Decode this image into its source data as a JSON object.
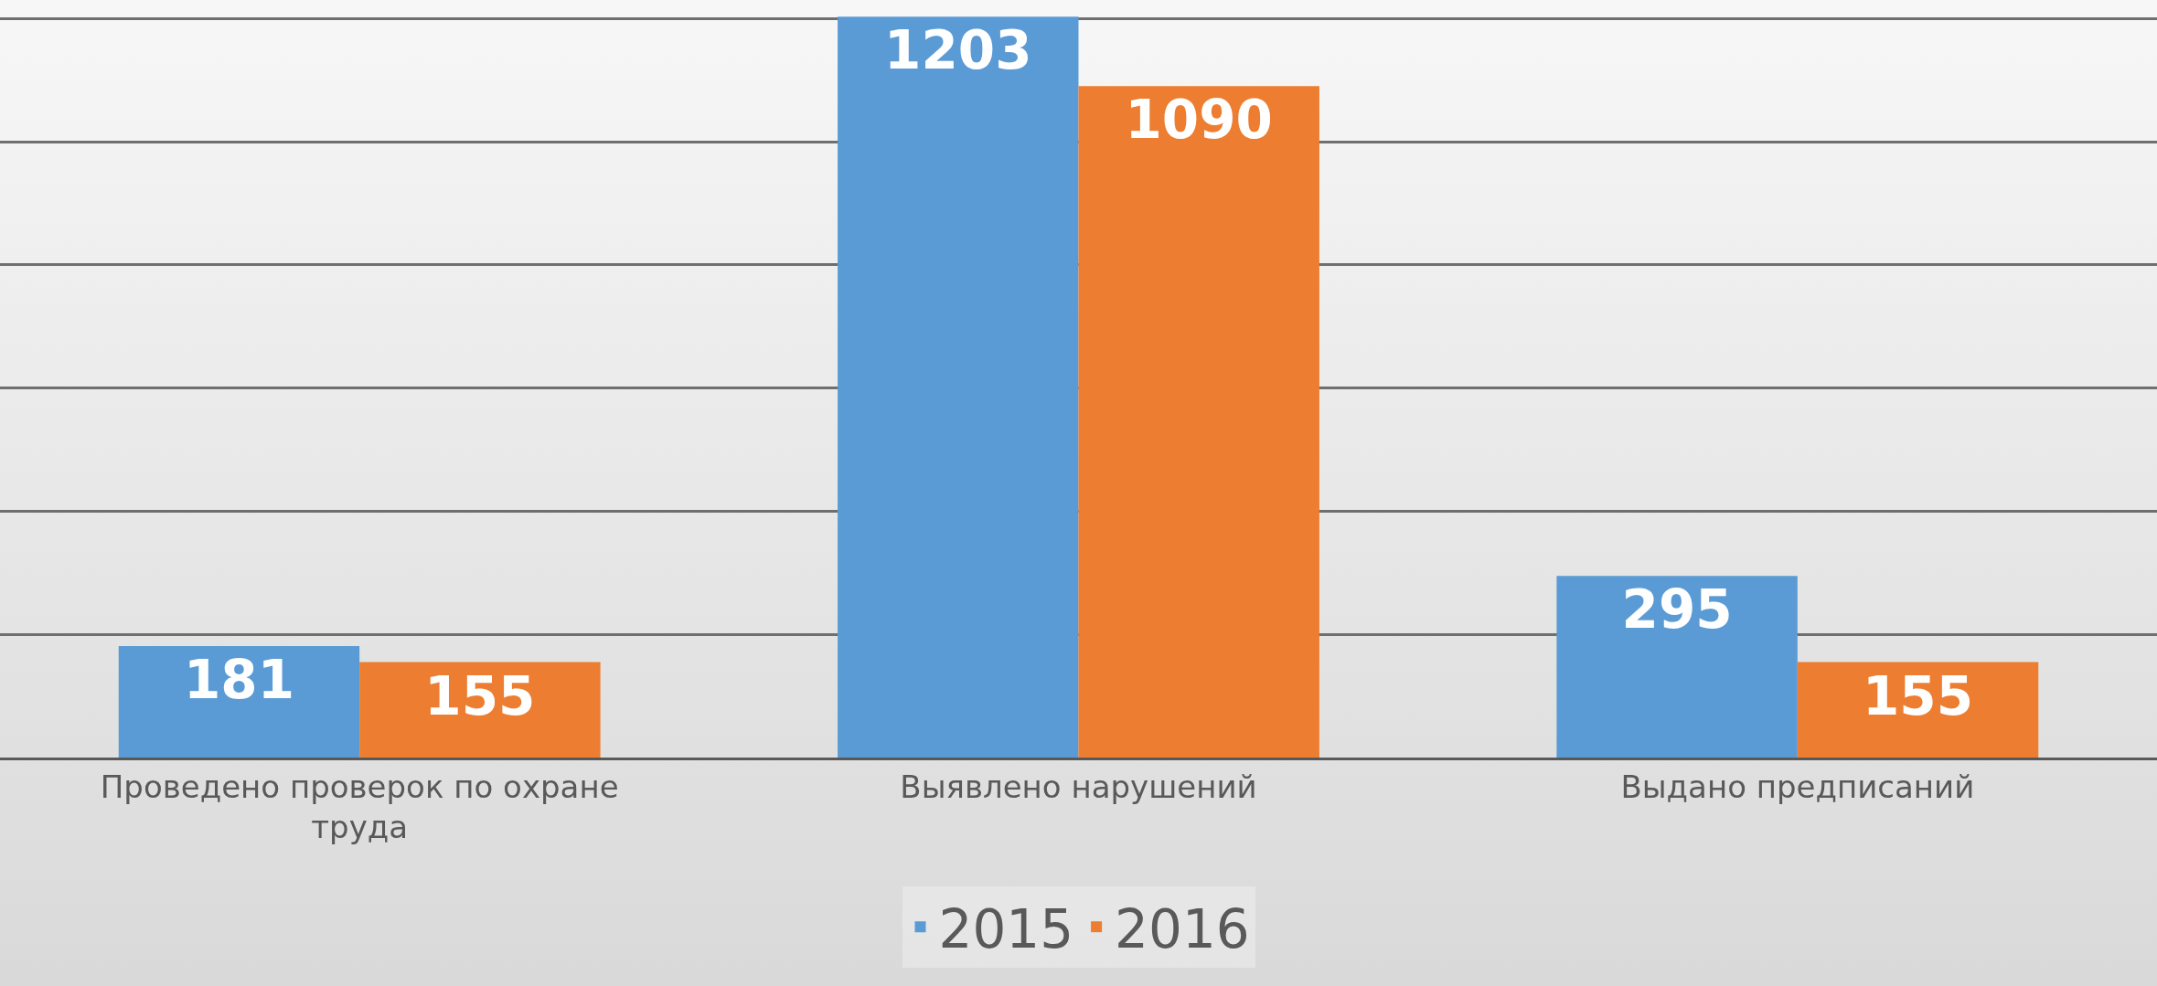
{
  "chart_data": {
    "type": "bar",
    "categories": [
      "Проведено проверок по охране труда",
      "Выявлено нарушений",
      "Выдано предписаний"
    ],
    "series": [
      {
        "name": "2015",
        "color": "#5b9bd5",
        "values": [
          181,
          1203,
          295
        ]
      },
      {
        "name": "2016",
        "color": "#ed7d31",
        "values": [
          155,
          1090,
          155
        ]
      }
    ],
    "ylim": [
      0,
      1230
    ],
    "yticks": [
      {
        "value": 0,
        "label": null
      },
      {
        "value": 200,
        "label": null
      },
      {
        "value": 400,
        "label": null
      },
      {
        "value": 600,
        "label": null
      },
      {
        "value": 800,
        "label": null
      },
      {
        "value": 1000,
        "label": null
      },
      {
        "value": 1200,
        "label": null
      }
    ],
    "tick_labels": "x",
    "grid": "y",
    "legend": "bottom",
    "data_labels": true
  }
}
